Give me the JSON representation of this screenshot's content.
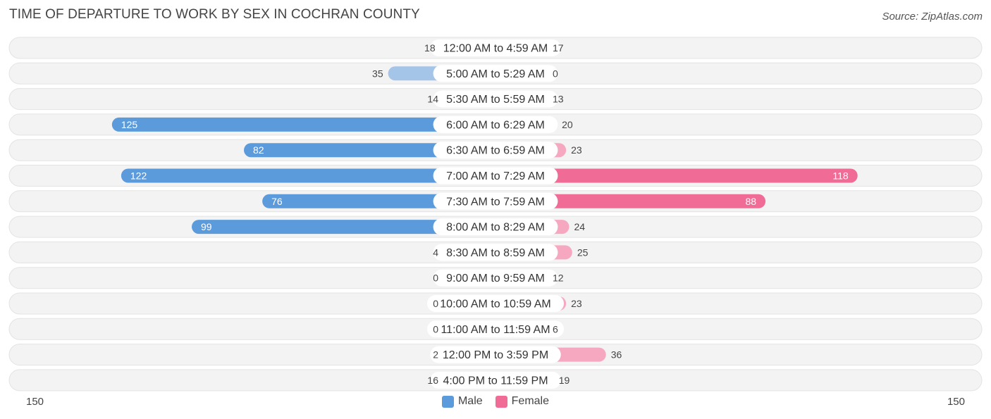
{
  "title": "TIME OF DEPARTURE TO WORK BY SEX IN COCHRAN COUNTY",
  "source": "Source: ZipAtlas.com",
  "colors": {
    "male_dark": "#5b9bdc",
    "male_light": "#a4c4e8",
    "female_dark": "#f06c96",
    "female_light": "#f6a8c0",
    "row_bg": "#efefef"
  },
  "legend": {
    "male": "Male",
    "female": "Female"
  },
  "axis": {
    "left_max_label": "150",
    "right_max_label": "150"
  },
  "chart_data": {
    "type": "bar",
    "orientation": "horizontal-diverging",
    "xlim": [
      -150,
      150
    ],
    "categories": [
      "12:00 AM to 4:59 AM",
      "5:00 AM to 5:29 AM",
      "5:30 AM to 5:59 AM",
      "6:00 AM to 6:29 AM",
      "6:30 AM to 6:59 AM",
      "7:00 AM to 7:29 AM",
      "7:30 AM to 7:59 AM",
      "8:00 AM to 8:29 AM",
      "8:30 AM to 8:59 AM",
      "9:00 AM to 9:59 AM",
      "10:00 AM to 10:59 AM",
      "11:00 AM to 11:59 AM",
      "12:00 PM to 3:59 PM",
      "4:00 PM to 11:59 PM"
    ],
    "series": [
      {
        "name": "Male",
        "values": [
          18,
          35,
          14,
          125,
          82,
          122,
          76,
          99,
          4,
          0,
          0,
          0,
          2,
          16
        ]
      },
      {
        "name": "Female",
        "values": [
          17,
          0,
          13,
          20,
          23,
          118,
          88,
          24,
          25,
          12,
          23,
          6,
          36,
          19
        ]
      }
    ]
  }
}
